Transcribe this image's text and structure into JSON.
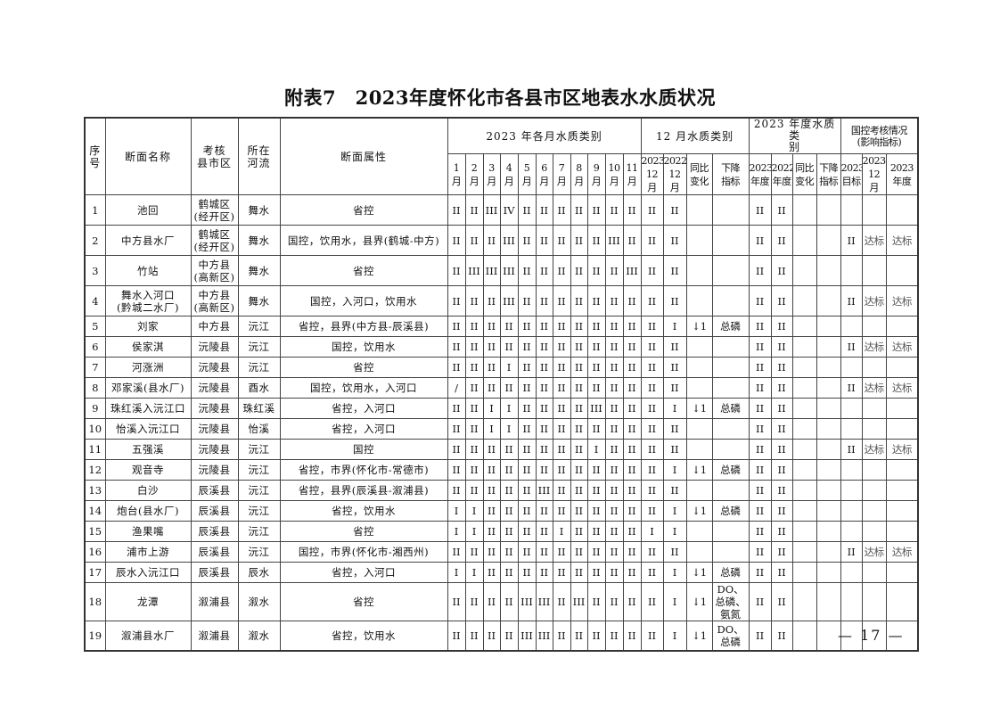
{
  "title": "附表7　2023年度怀化市各县市区地表水水质状况",
  "page_number": "— 17 —",
  "header": {
    "seq": "序\n号",
    "name": "断面名称",
    "county": "考核\n县市区",
    "river": "所在\n河流",
    "attr": "断面属性",
    "monthly_group": "2023 年各月水质类别",
    "dec_group": "12 月水质类别",
    "year_group": "2023 年度水质类\n别",
    "national_group": "国控考核情况\n(影响指标)",
    "months": [
      "1\n月",
      "2\n月",
      "3\n月",
      "4\n月",
      "5\n月",
      "6\n月",
      "7\n月",
      "8\n月",
      "9\n月",
      "10\n月",
      "11\n月"
    ],
    "dec_cols": [
      "2023\n12 月",
      "2022\n12 月",
      "同比\n变化",
      "下降\n指标"
    ],
    "year_cols": [
      "2023\n年度",
      "2022\n年度",
      "同比\n变化",
      "下降\n指标"
    ],
    "national_cols": [
      "2023\n目标",
      "2023\n12 月",
      "2023\n年度"
    ]
  },
  "rows": [
    {
      "seq": "1",
      "name": "池回",
      "county": "鹤城区\n(经开区)",
      "river": "舞水",
      "attr": "省控",
      "months": [
        "II",
        "II",
        "III",
        "IV",
        "II",
        "II",
        "II",
        "II",
        "II",
        "II",
        "II"
      ],
      "dec2023": "II",
      "dec2022": "II",
      "dec_change": "",
      "dec_drop": "",
      "y2023": "II",
      "y2022": "II",
      "y_change": "",
      "y_drop": "",
      "target": "",
      "nat_dec": "",
      "nat_year": ""
    },
    {
      "seq": "2",
      "name": "中方县水厂",
      "county": "鹤城区\n(经开区)",
      "river": "舞水",
      "attr": "国控，饮用水，县界(鹤城-中方)",
      "months": [
        "II",
        "II",
        "II",
        "III",
        "II",
        "II",
        "II",
        "II",
        "II",
        "III",
        "II"
      ],
      "dec2023": "II",
      "dec2022": "II",
      "dec_change": "",
      "dec_drop": "",
      "y2023": "II",
      "y2022": "II",
      "y_change": "",
      "y_drop": "",
      "target": "II",
      "nat_dec": "达标",
      "nat_year": "达标"
    },
    {
      "seq": "3",
      "name": "竹站",
      "county": "中方县\n(高新区)",
      "river": "舞水",
      "attr": "省控",
      "months": [
        "II",
        "III",
        "III",
        "III",
        "II",
        "II",
        "II",
        "II",
        "II",
        "II",
        "III"
      ],
      "dec2023": "II",
      "dec2022": "II",
      "dec_change": "",
      "dec_drop": "",
      "y2023": "II",
      "y2022": "II",
      "y_change": "",
      "y_drop": "",
      "target": "",
      "nat_dec": "",
      "nat_year": ""
    },
    {
      "seq": "4",
      "name": "舞水入河口\n(黔城二水厂)",
      "county": "中方县\n(高新区)",
      "river": "舞水",
      "attr": "国控，入河口，饮用水",
      "months": [
        "II",
        "II",
        "II",
        "III",
        "II",
        "II",
        "II",
        "II",
        "II",
        "II",
        "II"
      ],
      "dec2023": "II",
      "dec2022": "II",
      "dec_change": "",
      "dec_drop": "",
      "y2023": "II",
      "y2022": "II",
      "y_change": "",
      "y_drop": "",
      "target": "II",
      "nat_dec": "达标",
      "nat_year": "达标"
    },
    {
      "seq": "5",
      "name": "刘家",
      "county": "中方县",
      "river": "沅江",
      "attr": "省控，县界(中方县-辰溪县)",
      "months": [
        "II",
        "II",
        "II",
        "II",
        "II",
        "II",
        "II",
        "II",
        "II",
        "II",
        "II"
      ],
      "dec2023": "II",
      "dec2022": "I",
      "dec_change": "↓1",
      "dec_drop": "总磷",
      "y2023": "II",
      "y2022": "II",
      "y_change": "",
      "y_drop": "",
      "target": "",
      "nat_dec": "",
      "nat_year": ""
    },
    {
      "seq": "6",
      "name": "侯家淇",
      "county": "沅陵县",
      "river": "沅江",
      "attr": "国控，饮用水",
      "months": [
        "II",
        "II",
        "II",
        "II",
        "II",
        "II",
        "II",
        "II",
        "II",
        "II",
        "II"
      ],
      "dec2023": "II",
      "dec2022": "II",
      "dec_change": "",
      "dec_drop": "",
      "y2023": "II",
      "y2022": "II",
      "y_change": "",
      "y_drop": "",
      "target": "II",
      "nat_dec": "达标",
      "nat_year": "达标"
    },
    {
      "seq": "7",
      "name": "河涨洲",
      "county": "沅陵县",
      "river": "沅江",
      "attr": "省控",
      "months": [
        "II",
        "II",
        "II",
        "I",
        "II",
        "II",
        "II",
        "II",
        "II",
        "II",
        "II"
      ],
      "dec2023": "II",
      "dec2022": "II",
      "dec_change": "",
      "dec_drop": "",
      "y2023": "II",
      "y2022": "II",
      "y_change": "",
      "y_drop": "",
      "target": "",
      "nat_dec": "",
      "nat_year": ""
    },
    {
      "seq": "8",
      "name": "邓家溪(县水厂)",
      "county": "沅陵县",
      "river": "酉水",
      "attr": "国控，饮用水，入河口",
      "months": [
        "/",
        "II",
        "II",
        "II",
        "II",
        "II",
        "II",
        "II",
        "II",
        "II",
        "II"
      ],
      "dec2023": "II",
      "dec2022": "II",
      "dec_change": "",
      "dec_drop": "",
      "y2023": "II",
      "y2022": "II",
      "y_change": "",
      "y_drop": "",
      "target": "II",
      "nat_dec": "达标",
      "nat_year": "达标"
    },
    {
      "seq": "9",
      "name": "珠红溪入沅江口",
      "county": "沅陵县",
      "river": "珠红溪",
      "attr": "省控，入河口",
      "months": [
        "II",
        "II",
        "I",
        "I",
        "II",
        "II",
        "II",
        "II",
        "III",
        "II",
        "II"
      ],
      "dec2023": "II",
      "dec2022": "I",
      "dec_change": "↓1",
      "dec_drop": "总磷",
      "y2023": "II",
      "y2022": "II",
      "y_change": "",
      "y_drop": "",
      "target": "",
      "nat_dec": "",
      "nat_year": ""
    },
    {
      "seq": "10",
      "name": "怡溪入沅江口",
      "county": "沅陵县",
      "river": "怡溪",
      "attr": "省控，入河口",
      "months": [
        "II",
        "II",
        "I",
        "I",
        "II",
        "II",
        "II",
        "II",
        "II",
        "II",
        "II"
      ],
      "dec2023": "II",
      "dec2022": "II",
      "dec_change": "",
      "dec_drop": "",
      "y2023": "II",
      "y2022": "II",
      "y_change": "",
      "y_drop": "",
      "target": "",
      "nat_dec": "",
      "nat_year": ""
    },
    {
      "seq": "11",
      "name": "五强溪",
      "county": "沅陵县",
      "river": "沅江",
      "attr": "国控",
      "months": [
        "II",
        "II",
        "II",
        "II",
        "II",
        "II",
        "II",
        "II",
        "I",
        "II",
        "II"
      ],
      "dec2023": "II",
      "dec2022": "II",
      "dec_change": "",
      "dec_drop": "",
      "y2023": "II",
      "y2022": "II",
      "y_change": "",
      "y_drop": "",
      "target": "II",
      "nat_dec": "达标",
      "nat_year": "达标"
    },
    {
      "seq": "12",
      "name": "观音寺",
      "county": "沅陵县",
      "river": "沅江",
      "attr": "省控，市界(怀化市-常德市)",
      "months": [
        "II",
        "II",
        "II",
        "II",
        "II",
        "II",
        "II",
        "II",
        "II",
        "II",
        "II"
      ],
      "dec2023": "II",
      "dec2022": "I",
      "dec_change": "↓1",
      "dec_drop": "总磷",
      "y2023": "II",
      "y2022": "II",
      "y_change": "",
      "y_drop": "",
      "target": "",
      "nat_dec": "",
      "nat_year": ""
    },
    {
      "seq": "13",
      "name": "白沙",
      "county": "辰溪县",
      "river": "沅江",
      "attr": "省控，县界(辰溪县-溆浦县)",
      "months": [
        "II",
        "II",
        "II",
        "II",
        "II",
        "III",
        "II",
        "II",
        "II",
        "II",
        "II"
      ],
      "dec2023": "II",
      "dec2022": "II",
      "dec_change": "",
      "dec_drop": "",
      "y2023": "II",
      "y2022": "II",
      "y_change": "",
      "y_drop": "",
      "target": "",
      "nat_dec": "",
      "nat_year": ""
    },
    {
      "seq": "14",
      "name": "炮台(县水厂)",
      "county": "辰溪县",
      "river": "沅江",
      "attr": "省控，饮用水",
      "months": [
        "I",
        "I",
        "II",
        "II",
        "II",
        "II",
        "II",
        "II",
        "II",
        "II",
        "II"
      ],
      "dec2023": "II",
      "dec2022": "I",
      "dec_change": "↓1",
      "dec_drop": "总磷",
      "y2023": "II",
      "y2022": "II",
      "y_change": "",
      "y_drop": "",
      "target": "",
      "nat_dec": "",
      "nat_year": ""
    },
    {
      "seq": "15",
      "name": "渔果嘴",
      "county": "辰溪县",
      "river": "沅江",
      "attr": "省控",
      "months": [
        "I",
        "I",
        "II",
        "II",
        "II",
        "II",
        "I",
        "II",
        "II",
        "II",
        "II"
      ],
      "dec2023": "I",
      "dec2022": "I",
      "dec_change": "",
      "dec_drop": "",
      "y2023": "II",
      "y2022": "II",
      "y_change": "",
      "y_drop": "",
      "target": "",
      "nat_dec": "",
      "nat_year": ""
    },
    {
      "seq": "16",
      "name": "浦市上游",
      "county": "辰溪县",
      "river": "沅江",
      "attr": "国控，市界(怀化市-湘西州)",
      "months": [
        "II",
        "II",
        "II",
        "II",
        "II",
        "II",
        "II",
        "II",
        "II",
        "II",
        "II"
      ],
      "dec2023": "II",
      "dec2022": "II",
      "dec_change": "",
      "dec_drop": "",
      "y2023": "II",
      "y2022": "II",
      "y_change": "",
      "y_drop": "",
      "target": "II",
      "nat_dec": "达标",
      "nat_year": "达标"
    },
    {
      "seq": "17",
      "name": "辰水入沅江口",
      "county": "辰溪县",
      "river": "辰水",
      "attr": "省控，入河口",
      "months": [
        "I",
        "I",
        "II",
        "II",
        "II",
        "II",
        "II",
        "II",
        "II",
        "II",
        "II"
      ],
      "dec2023": "II",
      "dec2022": "I",
      "dec_change": "↓1",
      "dec_drop": "总磷",
      "y2023": "II",
      "y2022": "II",
      "y_change": "",
      "y_drop": "",
      "target": "",
      "nat_dec": "",
      "nat_year": ""
    },
    {
      "seq": "18",
      "name": "龙潭",
      "county": "溆浦县",
      "river": "溆水",
      "attr": "省控",
      "months": [
        "II",
        "II",
        "II",
        "II",
        "III",
        "III",
        "II",
        "III",
        "II",
        "II",
        "II"
      ],
      "dec2023": "II",
      "dec2022": "I",
      "dec_change": "↓1",
      "dec_drop": "DO、总磷、氨氮",
      "y2023": "II",
      "y2022": "II",
      "y_change": "",
      "y_drop": "",
      "target": "",
      "nat_dec": "",
      "nat_year": ""
    },
    {
      "seq": "19",
      "name": "溆浦县水厂",
      "county": "溆浦县",
      "river": "溆水",
      "attr": "省控，饮用水",
      "months": [
        "II",
        "II",
        "II",
        "II",
        "III",
        "III",
        "II",
        "II",
        "II",
        "II",
        "II"
      ],
      "dec2023": "II",
      "dec2022": "I",
      "dec_change": "↓1",
      "dec_drop": "DO、\n总磷",
      "y2023": "II",
      "y2022": "II",
      "y_change": "",
      "y_drop": "",
      "target": "",
      "nat_dec": "",
      "nat_year": ""
    }
  ]
}
